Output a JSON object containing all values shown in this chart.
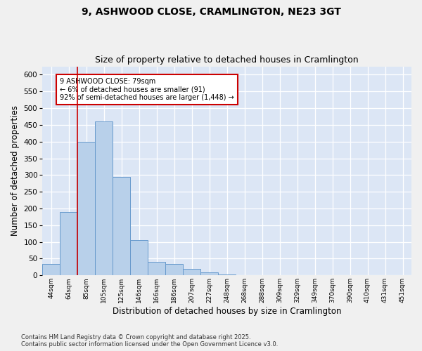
{
  "title_line1": "9, ASHWOOD CLOSE, CRAMLINGTON, NE23 3GT",
  "title_line2": "Size of property relative to detached houses in Cramlington",
  "xlabel": "Distribution of detached houses by size in Cramlington",
  "ylabel": "Number of detached properties",
  "footnote": "Contains HM Land Registry data © Crown copyright and database right 2025.\nContains public sector information licensed under the Open Government Licence v3.0.",
  "bin_labels": [
    "44sqm",
    "64sqm",
    "85sqm",
    "105sqm",
    "125sqm",
    "146sqm",
    "166sqm",
    "186sqm",
    "207sqm",
    "227sqm",
    "248sqm",
    "268sqm",
    "288sqm",
    "309sqm",
    "329sqm",
    "349sqm",
    "370sqm",
    "390sqm",
    "410sqm",
    "431sqm",
    "451sqm"
  ],
  "bar_values": [
    35,
    190,
    400,
    460,
    295,
    105,
    40,
    35,
    20,
    10,
    3,
    0,
    0,
    0,
    0,
    0,
    0,
    0,
    0,
    0,
    1
  ],
  "bar_color": "#b8d0ea",
  "bar_edge_color": "#6699cc",
  "background_color": "#dce6f5",
  "grid_color": "#ffffff",
  "vline_x": 1.5,
  "vline_color": "#cc0000",
  "annotation_text": "9 ASHWOOD CLOSE: 79sqm\n← 6% of detached houses are smaller (91)\n92% of semi-detached houses are larger (1,448) →",
  "annotation_box_color": "#ffffff",
  "annotation_box_edge": "#cc0000",
  "ylim": [
    0,
    625
  ],
  "yticks": [
    0,
    50,
    100,
    150,
    200,
    250,
    300,
    350,
    400,
    450,
    500,
    550,
    600
  ],
  "title_fontsize": 10,
  "subtitle_fontsize": 9,
  "xlabel_fontsize": 8.5,
  "ylabel_fontsize": 8.5,
  "fig_width": 6.0,
  "fig_height": 5.0,
  "fig_bg": "#f0f0f0"
}
